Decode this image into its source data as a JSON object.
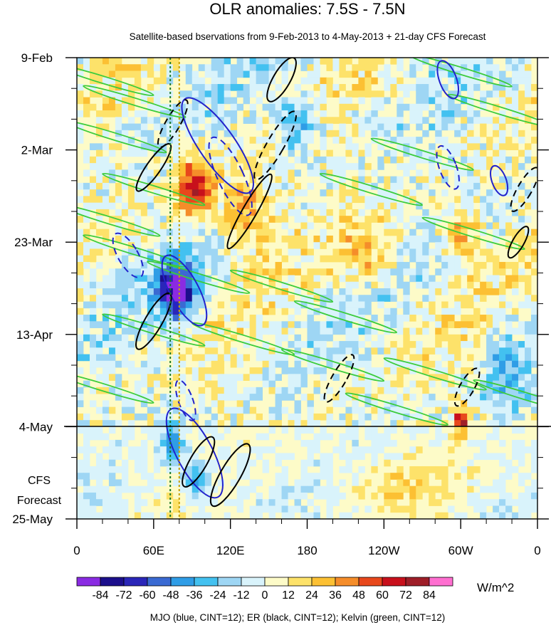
{
  "chart_data": {
    "type": "heatmap",
    "title": "OLR anomalies: 7.5S - 7.5N",
    "subtitle": "Satellite-based bservations from 9-Feb-2013 to 4-May-2013 + 21-day CFS Forecast",
    "y_ticks": [
      "9-Feb",
      "2-Mar",
      "23-Mar",
      "13-Apr",
      "4-May",
      "25-May"
    ],
    "forecast_label": [
      "CFS",
      "Forecast"
    ],
    "x_ticks": [
      "0",
      "60E",
      "120E",
      "180",
      "120W",
      "60W",
      "0"
    ],
    "x_range_deg": [
      0,
      360
    ],
    "y_range_days": [
      0,
      105
    ],
    "observation_end_day": 84,
    "colorbar": {
      "labels": [
        "-84",
        "-72",
        "-60",
        "-48",
        "-36",
        "-24",
        "-12",
        "0",
        "12",
        "24",
        "36",
        "48",
        "60",
        "72",
        "84"
      ],
      "colors": [
        "#8a2be2",
        "#1c0f8c",
        "#2a26b8",
        "#3a6ad2",
        "#2f9de6",
        "#43c1f0",
        "#9ed6f4",
        "#d9f3fb",
        "#fdfbc8",
        "#fde26a",
        "#fcc033",
        "#f58d2a",
        "#e8481c",
        "#c8101c",
        "#9e1e28",
        "#ff6fd0"
      ],
      "units": "W/m^2"
    },
    "guide_lines_deg": [
      73,
      80
    ],
    "footer": "MJO (blue, CINT=12); ER (black, CINT=12); Kelvin (green, CINT=12)"
  }
}
